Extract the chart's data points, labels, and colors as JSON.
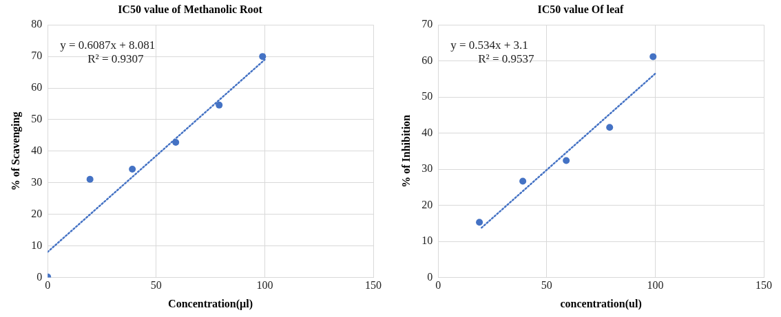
{
  "chart_data": [
    {
      "type": "scatter",
      "title": "IC50 value of Methanolic Root",
      "xlabel": "Concentration(µl)",
      "ylabel": "% of Scavenging",
      "xlim": [
        0,
        150
      ],
      "xticks": [
        0,
        50,
        100,
        150
      ],
      "ylim": [
        0,
        80
      ],
      "yticks": [
        0,
        10,
        20,
        30,
        40,
        50,
        60,
        70,
        80
      ],
      "grid": true,
      "annotations": [
        "y = 0.6087x + 8.081",
        "R² = 0.9307"
      ],
      "series": [
        {
          "type": "scatter",
          "color": "#4472c4",
          "marker": "circle",
          "x": [
            0,
            19.5,
            39,
            59,
            79,
            99
          ],
          "values": [
            0.2,
            31.1,
            34.3,
            42.8,
            54.6,
            70
          ]
        },
        {
          "type": "line",
          "color": "#4472c4",
          "marker": "none",
          "line_style": "dotted",
          "x": [
            0,
            100
          ],
          "values": [
            8.1,
            69
          ]
        }
      ]
    },
    {
      "type": "scatter",
      "title": "IC50 value Of leaf",
      "xlabel": "concentration(ul)",
      "ylabel": "% of Inhibition",
      "xlim": [
        0,
        150
      ],
      "xticks": [
        0,
        50,
        100,
        150
      ],
      "ylim": [
        0,
        70
      ],
      "yticks": [
        0,
        10,
        20,
        30,
        40,
        50,
        60,
        70
      ],
      "grid": true,
      "annotations": [
        "y = 0.534x + 3.1",
        "R² = 0.9537"
      ],
      "series": [
        {
          "type": "scatter",
          "color": "#4472c4",
          "marker": "circle",
          "x": [
            19,
            39,
            59,
            79,
            99
          ],
          "values": [
            15.3,
            26.7,
            32.4,
            41.6,
            61.2
          ]
        },
        {
          "type": "line",
          "color": "#4472c4",
          "marker": "none",
          "line_style": "dotted",
          "x": [
            20,
            100
          ],
          "values": [
            13.8,
            56.5
          ]
        }
      ]
    }
  ]
}
